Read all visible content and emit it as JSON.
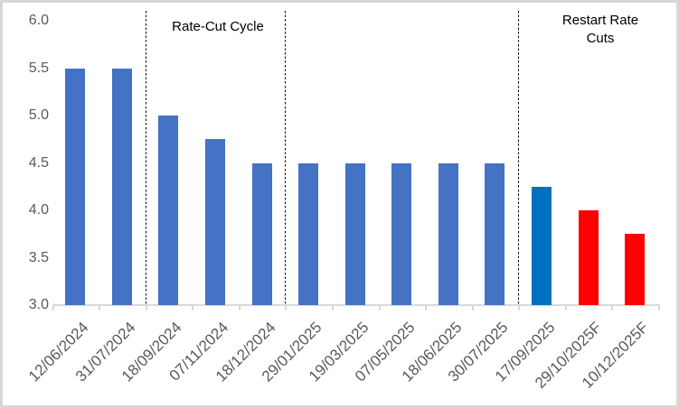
{
  "chart_data": {
    "type": "bar",
    "title": "",
    "xlabel": "",
    "ylabel": "",
    "categories": [
      "12/06/2024",
      "31/07/2024",
      "18/09/2024",
      "07/11/2024",
      "18/12/2024",
      "29/01/2025",
      "19/03/2025",
      "07/05/2025",
      "18/06/2025",
      "30/07/2025",
      "17/09/2025",
      "29/10/2025F",
      "10/12/2025F"
    ],
    "values": [
      5.5,
      5.5,
      5.0,
      4.75,
      4.5,
      4.5,
      4.5,
      4.5,
      4.5,
      4.5,
      4.25,
      4.0,
      3.75
    ],
    "colors": [
      "#4472C4",
      "#4472C4",
      "#4472C4",
      "#4472C4",
      "#4472C4",
      "#4472C4",
      "#4472C4",
      "#4472C4",
      "#4472C4",
      "#4472C4",
      "#0070C0",
      "#FF0000",
      "#FF0000"
    ],
    "bar_color_default": "#4472C4",
    "bar_color_highlight": "#0070C0",
    "bar_color_forecast": "#FF0000",
    "ylim": [
      3.0,
      6.0
    ],
    "yticks": [
      "6.0",
      "5.5",
      "5.0",
      "4.5",
      "4.0",
      "3.5",
      "3.0"
    ],
    "grid": false,
    "legend": false,
    "separators_after_category_index": [
      2,
      5,
      10
    ],
    "annotations": [
      {
        "label": "Rate-Cut Cycle"
      },
      {
        "label": "Restart Rate Cuts"
      }
    ],
    "axis_color": "#D9D9D9",
    "tick_label_color": "#595959",
    "frame_border_color": "#D7D7D7"
  }
}
